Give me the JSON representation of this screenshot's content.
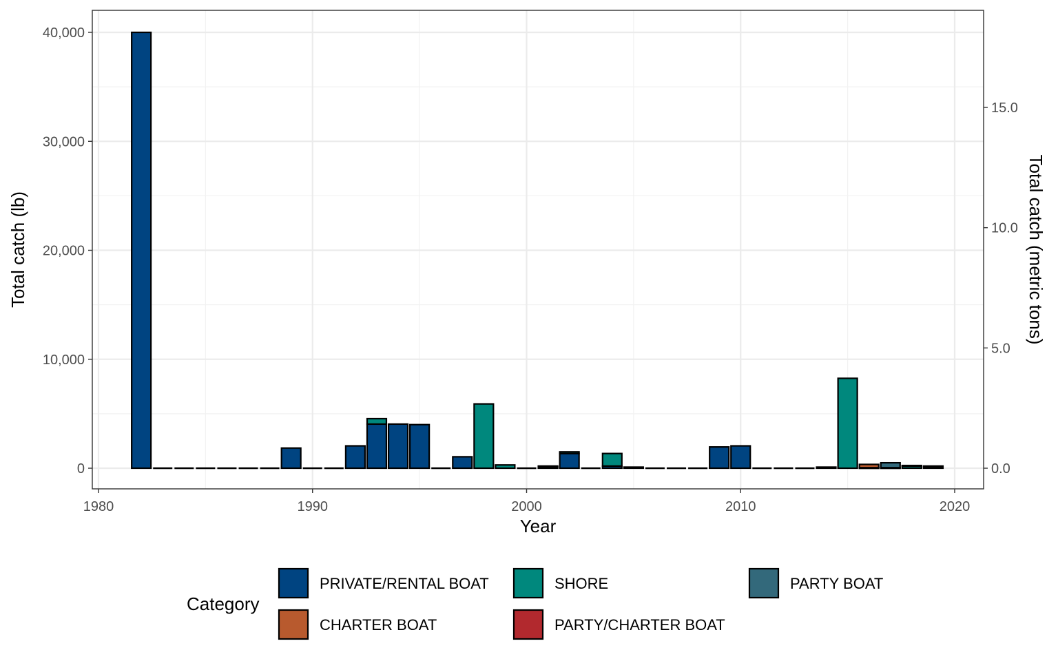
{
  "chart_data": {
    "type": "bar",
    "stacked": true,
    "xlabel": "Year",
    "ylabel": "Total catch (lb)",
    "ylabel_secondary": "Total catch (metric tons)",
    "xlim": [
      1980,
      2020
    ],
    "ylim": [
      0,
      40000
    ],
    "ylim_secondary": [
      0,
      15.0
    ],
    "x_ticks": [
      "1980",
      "1990",
      "2000",
      "2010",
      "2020"
    ],
    "y_ticks": [
      "0",
      "10,000",
      "20,000",
      "30,000",
      "40,000"
    ],
    "y_ticks_secondary": [
      "0.0",
      "5.0",
      "10.0",
      "15.0"
    ],
    "grid": true,
    "legend_title": "Category",
    "legend_position": "bottom",
    "legend": [
      {
        "name": "PRIVATE/RENTAL BOAT",
        "color": "#004481"
      },
      {
        "name": "SHORE",
        "color": "#00887D"
      },
      {
        "name": "PARTY BOAT",
        "color": "#33697B"
      },
      {
        "name": "CHARTER BOAT",
        "color": "#B85A2E"
      },
      {
        "name": "PARTY/CHARTER BOAT",
        "color": "#B2292E"
      }
    ],
    "x": [
      1982,
      1983,
      1984,
      1985,
      1986,
      1987,
      1988,
      1989,
      1990,
      1991,
      1992,
      1993,
      1994,
      1995,
      1996,
      1997,
      1998,
      1999,
      2000,
      2001,
      2002,
      2003,
      2004,
      2005,
      2006,
      2007,
      2008,
      2009,
      2010,
      2011,
      2012,
      2013,
      2014,
      2015,
      2016,
      2017,
      2018,
      2019
    ],
    "series": [
      {
        "name": "PRIVATE/RENTAL BOAT",
        "values": [
          40000,
          0,
          0,
          0,
          0,
          0,
          0,
          1850,
          0,
          0,
          2050,
          4050,
          4050,
          4000,
          0,
          1050,
          0,
          0,
          0,
          150,
          1350,
          0,
          200,
          0,
          0,
          0,
          0,
          1950,
          2050,
          0,
          0,
          0,
          100,
          0,
          0,
          0,
          0,
          0
        ]
      },
      {
        "name": "SHORE",
        "values": [
          0,
          0,
          0,
          0,
          0,
          0,
          0,
          0,
          0,
          0,
          0,
          500,
          0,
          0,
          0,
          0,
          5900,
          300,
          0,
          50,
          150,
          0,
          1150,
          100,
          0,
          0,
          0,
          0,
          0,
          0,
          0,
          0,
          0,
          8250,
          50,
          50,
          200,
          150
        ]
      },
      {
        "name": "PARTY BOAT",
        "values": [
          0,
          0,
          0,
          0,
          0,
          0,
          0,
          0,
          0,
          0,
          0,
          0,
          0,
          0,
          0,
          0,
          0,
          0,
          0,
          0,
          0,
          0,
          0,
          0,
          0,
          0,
          0,
          0,
          0,
          0,
          0,
          0,
          0,
          0,
          0,
          450,
          50,
          50
        ]
      },
      {
        "name": "CHARTER BOAT",
        "values": [
          0,
          0,
          0,
          0,
          0,
          0,
          0,
          0,
          0,
          0,
          0,
          0,
          0,
          0,
          0,
          0,
          0,
          0,
          0,
          0,
          0,
          0,
          0,
          0,
          0,
          0,
          0,
          0,
          0,
          0,
          0,
          0,
          0,
          0,
          300,
          0,
          0,
          0
        ]
      },
      {
        "name": "PARTY/CHARTER BOAT",
        "values": [
          0,
          0,
          0,
          0,
          0,
          0,
          0,
          0,
          0,
          0,
          0,
          0,
          0,
          0,
          0,
          0,
          0,
          0,
          0,
          0,
          0,
          0,
          0,
          0,
          0,
          0,
          0,
          0,
          0,
          0,
          0,
          0,
          0,
          0,
          0,
          0,
          0,
          0
        ]
      }
    ]
  }
}
